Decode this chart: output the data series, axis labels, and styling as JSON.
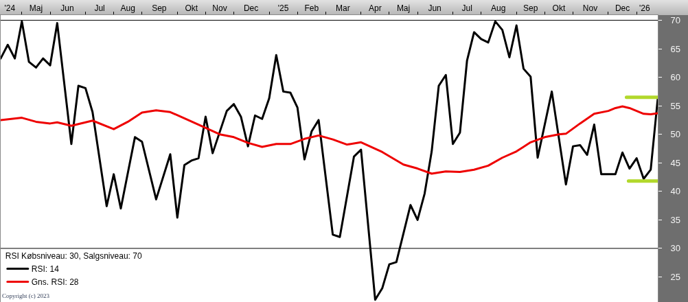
{
  "chart_data": {
    "type": "line",
    "legend_title": "RSI Købsniveau: 30, Salgsniveau: 70",
    "annotations": [
      "Copyright (c) 2023"
    ],
    "series": [
      {
        "name": "RSI: 14",
        "color": "#000000",
        "x": [
          "2024-04-14",
          "2024-04-21",
          "2024-04-28",
          "2024-05-05",
          "2024-05-12",
          "2024-05-19",
          "2024-05-26",
          "2024-06-02",
          "2024-06-09",
          "2024-06-23",
          "2024-06-30",
          "2024-07-07",
          "2024-07-14",
          "2024-07-28",
          "2024-08-04",
          "2024-08-11",
          "2024-08-25",
          "2024-09-01",
          "2024-09-15",
          "2024-09-29",
          "2024-10-06",
          "2024-10-13",
          "2024-10-20",
          "2024-10-27",
          "2024-11-03",
          "2024-11-10",
          "2024-11-24",
          "2024-12-01",
          "2024-12-08",
          "2024-12-15",
          "2024-12-22",
          "2024-12-29",
          "2025-01-05",
          "2025-01-12",
          "2025-01-19",
          "2025-01-26",
          "2025-02-02",
          "2025-02-09",
          "2025-02-16",
          "2025-02-23",
          "2025-03-09",
          "2025-03-16",
          "2025-03-30",
          "2025-04-06",
          "2025-04-20",
          "2025-04-27",
          "2025-05-04",
          "2025-05-11",
          "2025-05-25",
          "2025-06-01",
          "2025-06-08",
          "2025-06-15",
          "2025-06-22",
          "2025-06-29",
          "2025-07-06",
          "2025-07-13",
          "2025-07-20",
          "2025-07-27",
          "2025-08-03",
          "2025-08-10",
          "2025-08-17",
          "2025-08-24",
          "2025-08-31",
          "2025-09-07",
          "2025-09-14",
          "2025-09-21",
          "2025-09-28",
          "2025-10-12",
          "2025-10-26",
          "2025-11-02",
          "2025-11-09",
          "2025-11-16",
          "2025-11-23",
          "2025-11-30",
          "2025-12-07",
          "2025-12-14",
          "2025-12-21",
          "2025-12-28",
          "2026-01-04",
          "2026-01-11",
          "2026-01-18",
          "2026-01-25"
        ],
        "values": [
          63.3,
          65.7,
          63.3,
          69.8,
          62.7,
          61.7,
          63.3,
          62.1,
          69.5,
          48.3,
          58.5,
          58.1,
          53.9,
          37.4,
          43.0,
          37.0,
          49.5,
          48.7,
          38.6,
          46.5,
          35.4,
          44.6,
          45.4,
          45.8,
          53.1,
          46.7,
          54.1,
          55.3,
          53.1,
          47.9,
          53.3,
          52.7,
          56.3,
          63.9,
          57.5,
          57.3,
          54.7,
          45.6,
          50.5,
          52.5,
          32.4,
          32.0,
          46.1,
          47.3,
          21.0,
          23.0,
          27.2,
          27.6,
          37.6,
          35.0,
          39.6,
          47.0,
          58.5,
          60.4,
          48.3,
          50.3,
          62.9,
          67.9,
          66.7,
          66.1,
          69.8,
          68.3,
          63.5,
          69.1,
          61.5,
          60.1,
          45.9,
          57.5,
          41.2,
          47.9,
          48.1,
          46.4,
          51.7,
          43.0,
          43.0,
          43.0,
          46.8,
          44.0,
          45.8,
          42.2,
          43.8,
          56.3
        ]
      },
      {
        "name": "Gns. RSI: 28",
        "color": "#ee0000",
        "x": [
          "2024-04-14",
          "2024-05-05",
          "2024-05-19",
          "2024-06-02",
          "2024-06-09",
          "2024-06-23",
          "2024-07-14",
          "2024-08-04",
          "2024-08-18",
          "2024-09-01",
          "2024-09-15",
          "2024-09-29",
          "2024-10-13",
          "2024-10-27",
          "2024-11-17",
          "2024-12-01",
          "2024-12-15",
          "2024-12-29",
          "2025-01-12",
          "2025-01-26",
          "2025-02-09",
          "2025-02-23",
          "2025-03-09",
          "2025-03-23",
          "2025-04-06",
          "2025-04-27",
          "2025-05-18",
          "2025-06-01",
          "2025-06-15",
          "2025-06-29",
          "2025-07-13",
          "2025-07-27",
          "2025-08-10",
          "2025-08-24",
          "2025-09-07",
          "2025-09-21",
          "2025-10-05",
          "2025-10-19",
          "2025-10-26",
          "2025-11-09",
          "2025-11-23",
          "2025-12-07",
          "2025-12-14",
          "2025-12-21",
          "2025-12-28",
          "2026-01-04",
          "2026-01-11",
          "2026-01-18",
          "2026-01-25"
        ],
        "values": [
          52.5,
          52.9,
          52.2,
          51.9,
          52.1,
          51.5,
          52.4,
          50.9,
          52.2,
          53.8,
          54.2,
          53.9,
          52.8,
          51.7,
          50.0,
          49.5,
          48.5,
          47.8,
          48.3,
          48.3,
          49.2,
          49.8,
          49.1,
          48.2,
          48.6,
          46.9,
          44.7,
          44.0,
          43.1,
          43.5,
          43.4,
          43.8,
          44.5,
          45.9,
          47.0,
          48.6,
          49.5,
          50.0,
          50.1,
          51.9,
          53.6,
          54.1,
          54.6,
          54.9,
          54.6,
          54.1,
          53.6,
          53.5,
          53.7
        ]
      },
      {
        "color": "#b2d82c",
        "x": [
          "2025-12-25",
          "2026-01-25"
        ],
        "values": [
          56.5,
          56.5
        ]
      },
      {
        "color": "#b2d82c",
        "x": [
          "2025-12-27",
          "2026-01-25"
        ],
        "values": [
          41.8,
          41.8
        ]
      }
    ],
    "xlim": [
      "2024-04-14",
      "2026-01-25"
    ],
    "xticks": [
      {
        "value": "2024-04-23",
        "label": "'24"
      },
      {
        "value": "2024-05-05",
        "label": null
      },
      {
        "value": "2024-05-19",
        "label": "Maj"
      },
      {
        "value": "2024-06-02",
        "label": null
      },
      {
        "value": "2024-06-19",
        "label": "Jun"
      },
      {
        "value": "2024-07-07",
        "label": null
      },
      {
        "value": "2024-07-21",
        "label": "Jul"
      },
      {
        "value": "2024-08-04",
        "label": null
      },
      {
        "value": "2024-08-18",
        "label": "Aug"
      },
      {
        "value": "2024-09-01",
        "label": null
      },
      {
        "value": "2024-09-18",
        "label": "Sep"
      },
      {
        "value": "2024-10-06",
        "label": null
      },
      {
        "value": "2024-10-20",
        "label": "Okt"
      },
      {
        "value": "2024-11-03",
        "label": null
      },
      {
        "value": "2024-11-17",
        "label": "Nov"
      },
      {
        "value": "2024-12-01",
        "label": null
      },
      {
        "value": "2024-12-18",
        "label": "Dec"
      },
      {
        "value": "2025-01-05",
        "label": null
      },
      {
        "value": "2025-01-19",
        "label": "'25"
      },
      {
        "value": "2025-02-02",
        "label": null
      },
      {
        "value": "2025-02-16",
        "label": "Feb"
      },
      {
        "value": "2025-03-02",
        "label": null
      },
      {
        "value": "2025-03-19",
        "label": "Mar"
      },
      {
        "value": "2025-04-06",
        "label": null
      },
      {
        "value": "2025-04-20",
        "label": "Apr"
      },
      {
        "value": "2025-05-04",
        "label": null
      },
      {
        "value": "2025-05-18",
        "label": "Maj"
      },
      {
        "value": "2025-06-01",
        "label": null
      },
      {
        "value": "2025-06-18",
        "label": "Jun"
      },
      {
        "value": "2025-07-06",
        "label": null
      },
      {
        "value": "2025-07-20",
        "label": "Jul"
      },
      {
        "value": "2025-08-03",
        "label": null
      },
      {
        "value": "2025-08-20",
        "label": "Aug"
      },
      {
        "value": "2025-09-07",
        "label": null
      },
      {
        "value": "2025-09-21",
        "label": "Sep"
      },
      {
        "value": "2025-10-05",
        "label": null
      },
      {
        "value": "2025-10-19",
        "label": "Okt"
      },
      {
        "value": "2025-11-02",
        "label": null
      },
      {
        "value": "2025-11-19",
        "label": "Nov"
      },
      {
        "value": "2025-12-07",
        "label": null
      },
      {
        "value": "2025-12-21",
        "label": "Dec"
      },
      {
        "value": "2026-01-04",
        "label": null
      },
      {
        "value": "2026-01-12",
        "label": "'26"
      }
    ],
    "ylim": [
      20.6,
      70.9
    ],
    "yticks": [
      25,
      30,
      35,
      40,
      45,
      50,
      55,
      60,
      65,
      70
    ],
    "ref_lines": [
      {
        "axis": "y",
        "value": 70,
        "color": "#000000"
      },
      {
        "axis": "y",
        "value": 30,
        "color": "#000000"
      }
    ],
    "legend": "bottom left"
  }
}
